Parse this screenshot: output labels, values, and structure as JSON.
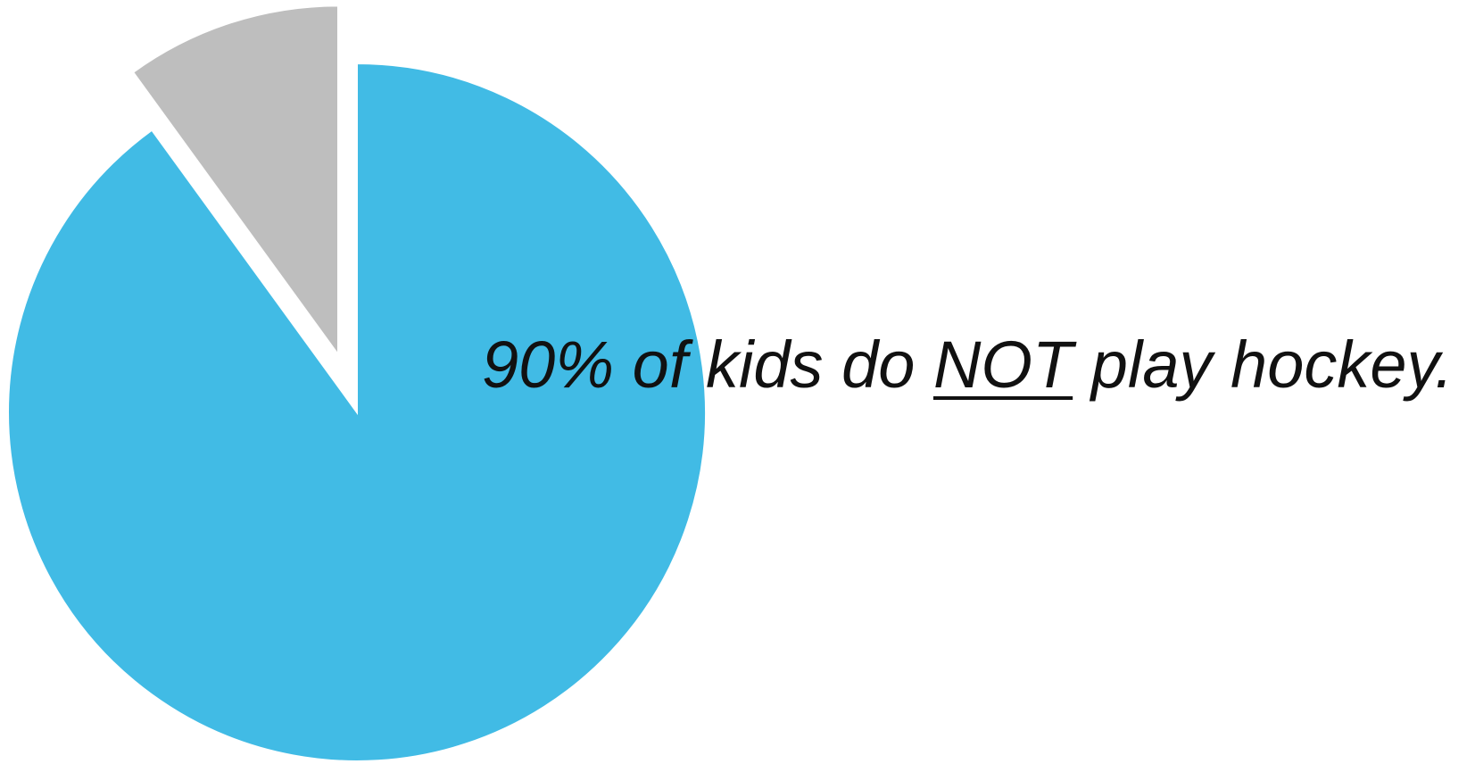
{
  "chart_data": {
    "type": "pie",
    "slices": [
      {
        "label": "do NOT play hockey",
        "value": 90,
        "color": "#41BBE5",
        "exploded": false
      },
      {
        "label": "play hockey",
        "value": 10,
        "color": "#BEBEBE",
        "exploded": true
      }
    ],
    "start_angle_deg": 0,
    "direction": "clockwise",
    "legend": "none"
  },
  "caption": {
    "before": "90% of kids do ",
    "emphasis": "NOT",
    "after": " play hockey."
  }
}
